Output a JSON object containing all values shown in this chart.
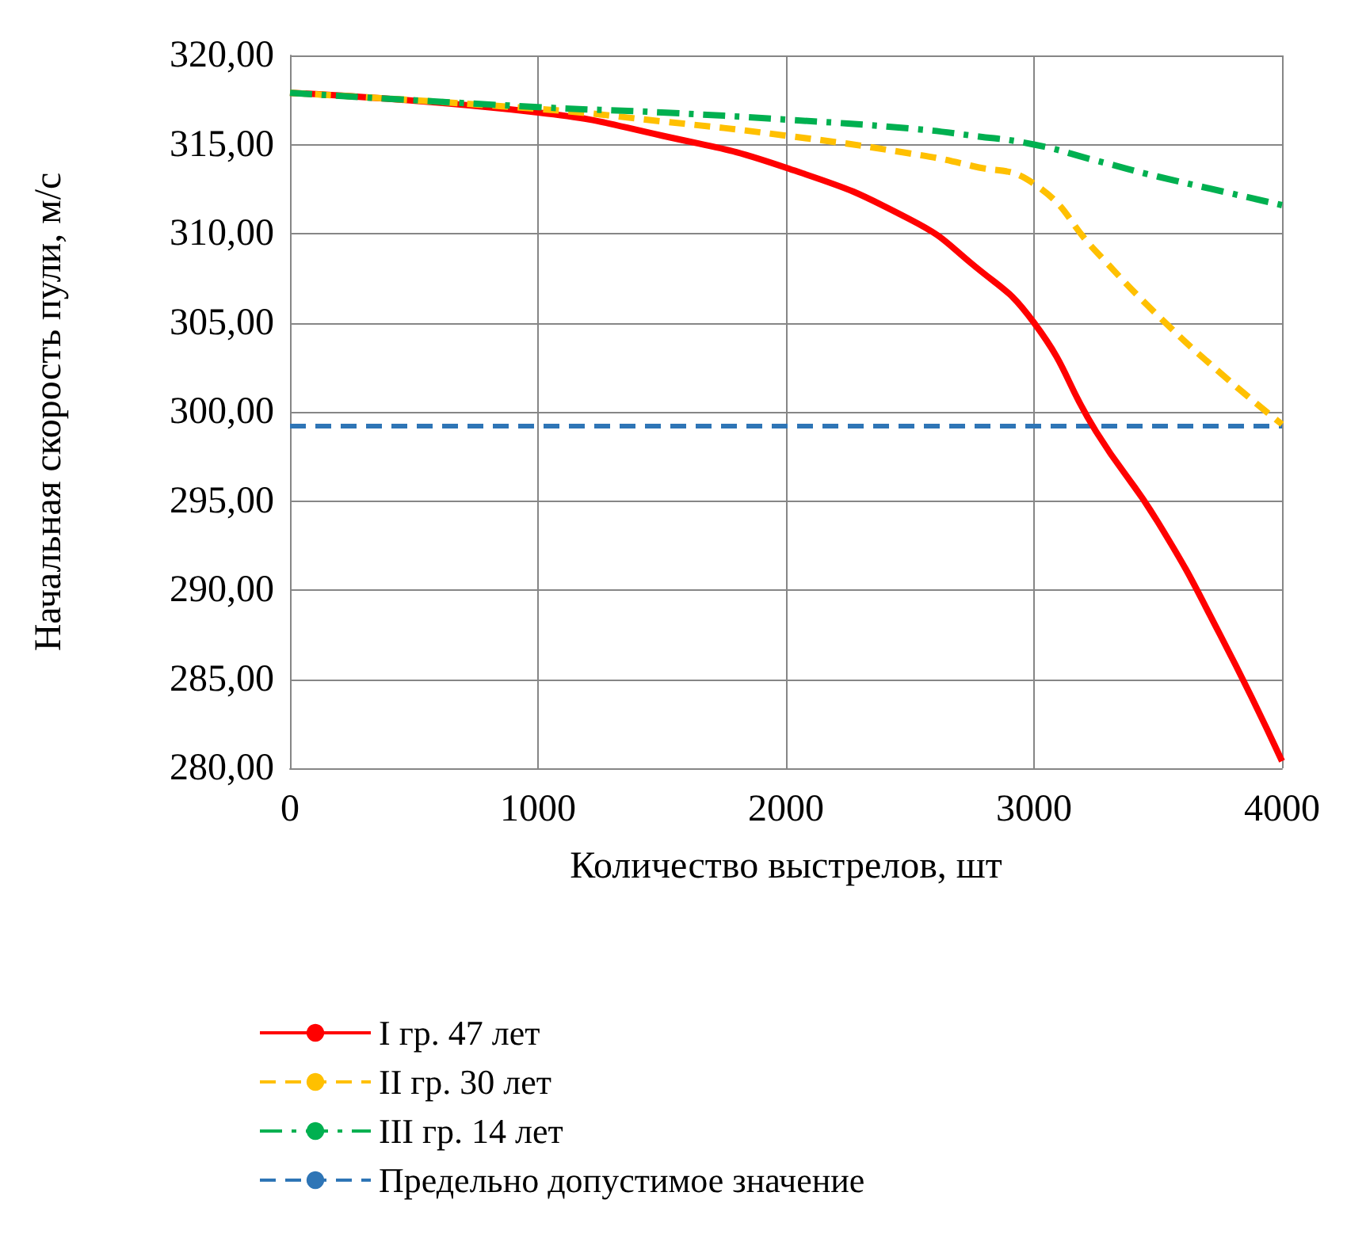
{
  "chart_data": {
    "type": "line",
    "xlabel": "Количество выстрелов, шт",
    "ylabel": "Начальная скорость пули, м/с",
    "x": [
      0,
      1000,
      1500,
      2000,
      2500,
      2750,
      3000,
      3250,
      3500,
      3750,
      4000
    ],
    "series": [
      {
        "name": "I гр. 47 лет",
        "color": "#ff0000",
        "line_style": "solid",
        "values": [
          317.9,
          316.8,
          315.5,
          313.7,
          310.8,
          308.3,
          305.0,
          298.9,
          293.8,
          287.5,
          280.4
        ]
      },
      {
        "name": "II гр. 30 лет",
        "color": "#ffc000",
        "line_style": "dashed",
        "values": [
          317.9,
          317.0,
          316.3,
          315.5,
          314.5,
          313.8,
          312.8,
          309.0,
          305.4,
          302.2,
          299.3
        ]
      },
      {
        "name": "III гр. 14 лет",
        "color": "#00b050",
        "line_style": "dashdot",
        "values": [
          317.9,
          317.1,
          316.8,
          316.4,
          315.9,
          315.5,
          315.0,
          314.1,
          313.2,
          312.4,
          311.6
        ]
      }
    ],
    "ref_lines": [
      {
        "axis": "y",
        "value": 299.2,
        "label": "Предельно допустимое значение",
        "color": "#2e75b6",
        "line_style": "dashed"
      }
    ],
    "xlim": [
      0,
      4000
    ],
    "xticks": [
      0,
      1000,
      2000,
      3000,
      4000
    ],
    "ylim": [
      280,
      320
    ],
    "yticks": [
      {
        "value": 280,
        "label": "280,00"
      },
      {
        "value": 285,
        "label": "285,00"
      },
      {
        "value": 290,
        "label": "290,00"
      },
      {
        "value": 295,
        "label": "295,00"
      },
      {
        "value": 300,
        "label": "300,00"
      },
      {
        "value": 305,
        "label": "305,00"
      },
      {
        "value": 310,
        "label": "310,00"
      },
      {
        "value": 315,
        "label": "315,00"
      },
      {
        "value": 320,
        "label": "320,00"
      }
    ],
    "grid": true,
    "legend": "bottom",
    "marker": "none"
  }
}
